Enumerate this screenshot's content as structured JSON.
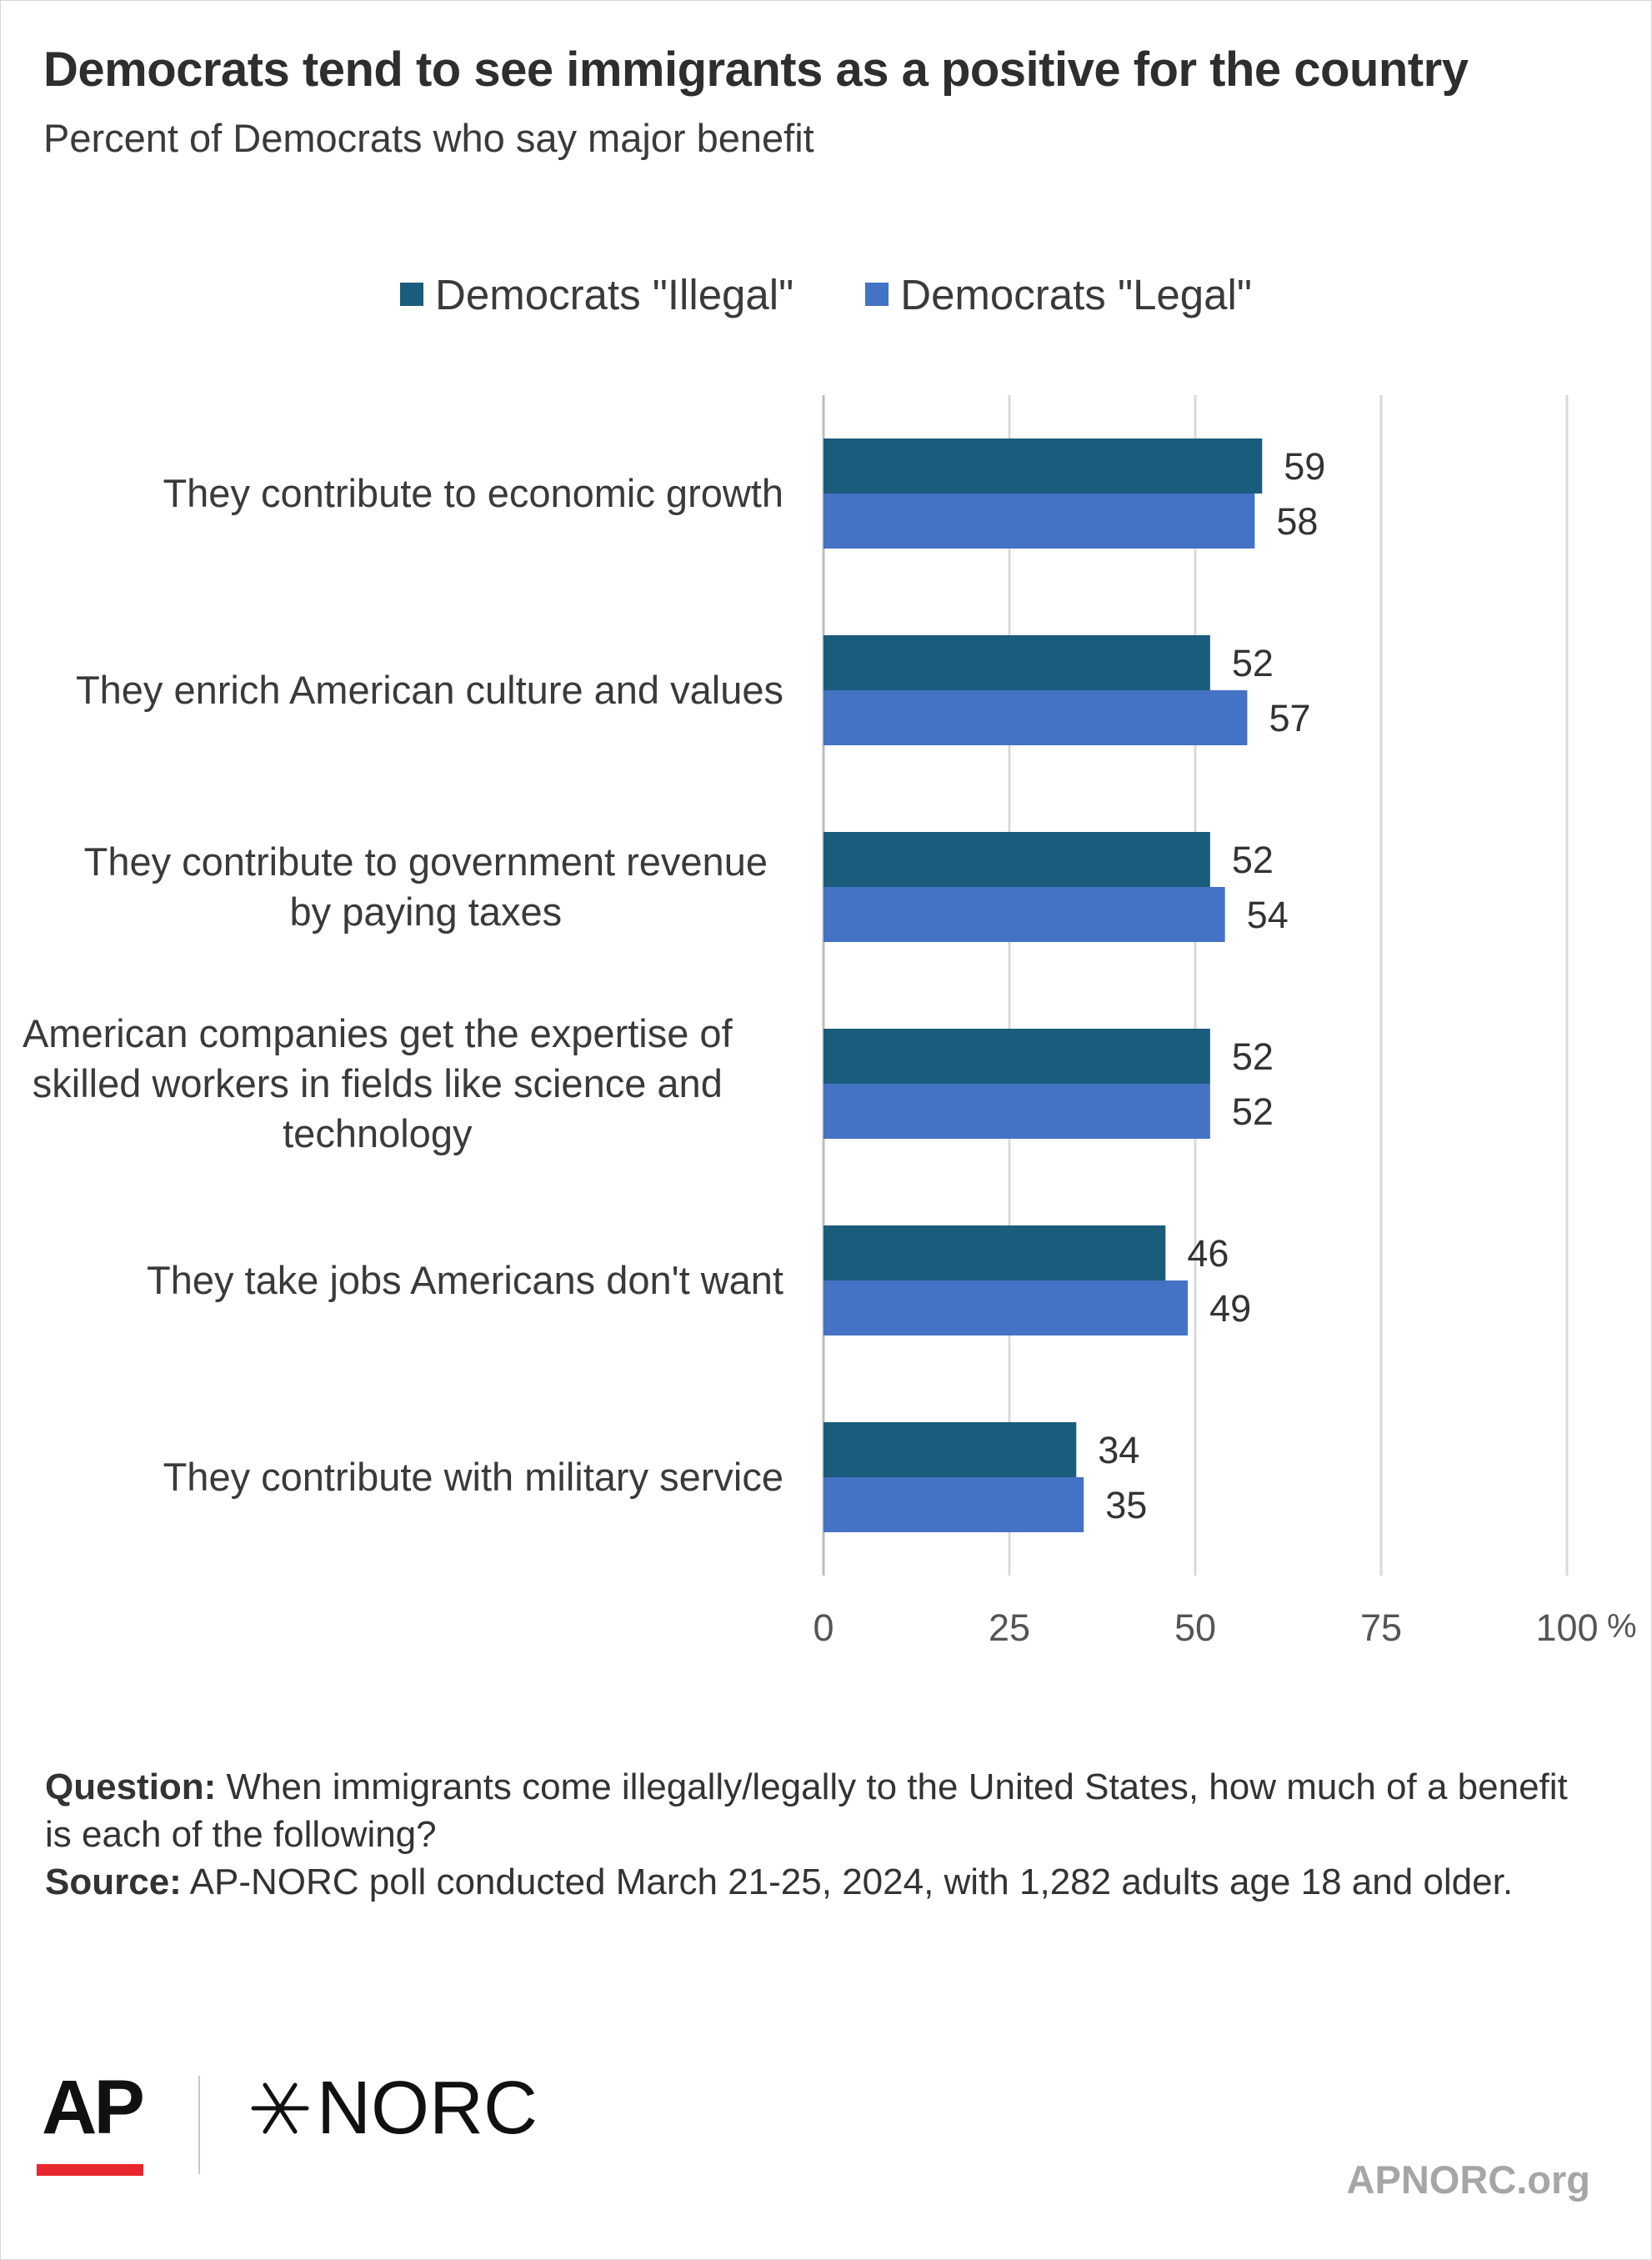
{
  "title": "Democrats tend to see immigrants as a positive for the country",
  "subtitle": "Percent of Democrats who say major benefit",
  "legend": [
    {
      "label": "Democrats \"Illegal\"",
      "color": "#1a5c7c"
    },
    {
      "label": "Democrats \"Legal\"",
      "color": "#4472c4"
    }
  ],
  "chart_data": {
    "type": "bar",
    "orientation": "horizontal",
    "categories": [
      [
        "They contribute to economic growth"
      ],
      [
        "They enrich American culture and values"
      ],
      [
        "They contribute to government revenue",
        "by paying taxes"
      ],
      [
        "American companies get the expertise of",
        "skilled workers in fields like science and",
        "technology"
      ],
      [
        "They take jobs Americans don't want"
      ],
      [
        "They contribute with military service"
      ]
    ],
    "series": [
      {
        "name": "Democrats \"Illegal\"",
        "color": "#1a5c7c",
        "values": [
          59,
          52,
          52,
          52,
          46,
          34
        ]
      },
      {
        "name": "Democrats \"Legal\"",
        "color": "#4472c4",
        "values": [
          58,
          57,
          54,
          52,
          49,
          35
        ]
      }
    ],
    "xticks": [
      "0",
      "25",
      "50",
      "75",
      "100"
    ],
    "xtick_values": [
      0,
      25,
      50,
      75,
      100
    ],
    "xunit": "%",
    "xlim": [
      0,
      100
    ],
    "grid": true,
    "legend_position": "top"
  },
  "footnote": {
    "question_label": "Question:",
    "question_text": " When immigrants come illegally/legally to the United States, how much of a benefit is each of the following?",
    "source_label": "Source:",
    "source_text": " AP-NORC poll conducted March 21-25, 2024, with 1,282 adults age 18 and older."
  },
  "logos": {
    "ap": "AP",
    "norc": "NORC",
    "ap_accent_color": "#e8262e"
  },
  "site": "APNORC.org"
}
